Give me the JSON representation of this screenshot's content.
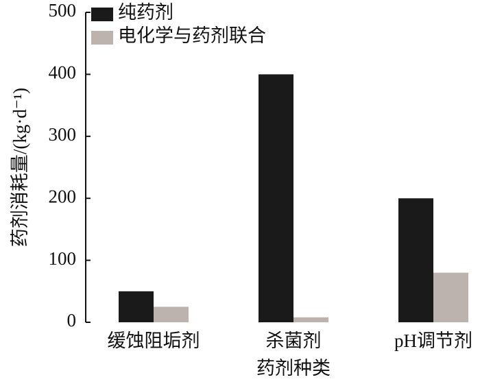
{
  "chart_data": {
    "type": "bar",
    "x_label": "药剂种类",
    "y_label": "药剂消耗量/(kg·d⁻¹)",
    "categories": [
      "缓蚀阻垢剂",
      "杀菌剂",
      "pH调节剂"
    ],
    "series": [
      {
        "name": "纯药剂",
        "color": "#1b1a1a",
        "values": [
          50,
          400,
          200
        ]
      },
      {
        "name": "电化学与药剂联合",
        "color": "#bcb3ae",
        "values": [
          25,
          8,
          80
        ]
      }
    ],
    "ylim": [
      0,
      500
    ],
    "yticks": [
      0,
      100,
      200,
      300,
      400,
      500
    ],
    "legend": "upper-left"
  }
}
